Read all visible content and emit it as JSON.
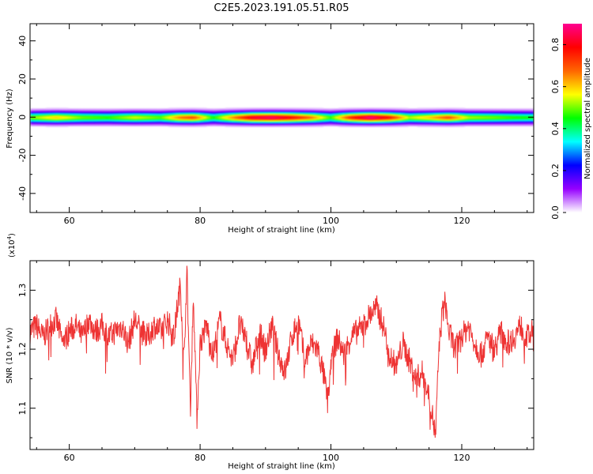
{
  "chart_data": [
    {
      "type": "heatmap",
      "title": "C2E5.2023.191.05.51.R05",
      "xlabel": "Height of straight line (km)",
      "ylabel": "Frequency (Hz)",
      "xlim": [
        54,
        131
      ],
      "ylim": [
        -50,
        49
      ],
      "x_ticks": [
        "60",
        "80",
        "100",
        "120"
      ],
      "y_ticks": [
        "-40",
        "-20",
        "0",
        "20",
        "40"
      ],
      "colorbar": {
        "label": "Normalized spectral amplitude",
        "range": [
          0,
          0.9
        ],
        "ticks": [
          "0.0",
          "0.2",
          "0.4",
          "0.6",
          "0.8"
        ],
        "colors": [
          "#ffffff",
          "#9600ff",
          "#0000ff",
          "#00ffff",
          "#00ff00",
          "#ffff00",
          "#ff6600",
          "#ff0000",
          "#ff0090"
        ]
      },
      "band": {
        "center_hz": 0,
        "half_width_hz": 5,
        "profile": [
          {
            "x": 54,
            "a": 0.45
          },
          {
            "x": 58,
            "a": 0.55
          },
          {
            "x": 62,
            "a": 0.45
          },
          {
            "x": 66,
            "a": 0.42
          },
          {
            "x": 70,
            "a": 0.5
          },
          {
            "x": 74,
            "a": 0.44
          },
          {
            "x": 77,
            "a": 0.62
          },
          {
            "x": 79,
            "a": 0.66
          },
          {
            "x": 82,
            "a": 0.4
          },
          {
            "x": 85,
            "a": 0.6
          },
          {
            "x": 88,
            "a": 0.78
          },
          {
            "x": 91,
            "a": 0.82
          },
          {
            "x": 94,
            "a": 0.74
          },
          {
            "x": 97,
            "a": 0.62
          },
          {
            "x": 100,
            "a": 0.42
          },
          {
            "x": 103,
            "a": 0.7
          },
          {
            "x": 106,
            "a": 0.84
          },
          {
            "x": 109,
            "a": 0.72
          },
          {
            "x": 112,
            "a": 0.48
          },
          {
            "x": 115,
            "a": 0.55
          },
          {
            "x": 118,
            "a": 0.66
          },
          {
            "x": 121,
            "a": 0.48
          },
          {
            "x": 125,
            "a": 0.45
          },
          {
            "x": 128,
            "a": 0.42
          },
          {
            "x": 131,
            "a": 0.4
          }
        ]
      }
    },
    {
      "type": "line",
      "xlabel": "Height of straight line (km)",
      "ylabel": "SNR (10 * v/v)",
      "y_multiplier_label": "(x10",
      "y_multiplier_exp": "4",
      "xlim": [
        54,
        131
      ],
      "ylim": [
        1.03,
        1.35
      ],
      "x_ticks": [
        "60",
        "80",
        "100",
        "120"
      ],
      "y_ticks": [
        "1.1",
        "1.2",
        "1.3"
      ],
      "series": [
        {
          "color": "#ee3333",
          "x": [
            54,
            55,
            56,
            57,
            58,
            59,
            60,
            61,
            62,
            63,
            64,
            65,
            66,
            67,
            68,
            69,
            70,
            71,
            72,
            73,
            74,
            75,
            76,
            76.5,
            77,
            77.5,
            78,
            78.5,
            79,
            79.5,
            80,
            81,
            82,
            83,
            84,
            85,
            86,
            87,
            88,
            89,
            90,
            91,
            92,
            93,
            94,
            95,
            96,
            97,
            98,
            99,
            99.5,
            100,
            101,
            102,
            103,
            104,
            105,
            106,
            107,
            108,
            109,
            110,
            111,
            112,
            113,
            114,
            115,
            115.5,
            116,
            116.5,
            117,
            117.5,
            118,
            119,
            120,
            121,
            122,
            123,
            124,
            125,
            126,
            127,
            128,
            129,
            130,
            131
          ],
          "values": [
            1.23,
            1.24,
            1.22,
            1.24,
            1.25,
            1.21,
            1.23,
            1.24,
            1.22,
            1.25,
            1.23,
            1.24,
            1.22,
            1.23,
            1.24,
            1.21,
            1.25,
            1.23,
            1.22,
            1.24,
            1.23,
            1.25,
            1.22,
            1.27,
            1.31,
            1.18,
            1.33,
            1.1,
            1.3,
            1.08,
            1.21,
            1.24,
            1.19,
            1.25,
            1.21,
            1.18,
            1.24,
            1.22,
            1.17,
            1.23,
            1.2,
            1.24,
            1.19,
            1.16,
            1.22,
            1.25,
            1.18,
            1.21,
            1.2,
            1.15,
            1.11,
            1.18,
            1.22,
            1.19,
            1.22,
            1.23,
            1.24,
            1.26,
            1.27,
            1.24,
            1.19,
            1.17,
            1.21,
            1.18,
            1.15,
            1.16,
            1.12,
            1.09,
            1.05,
            1.2,
            1.26,
            1.28,
            1.23,
            1.2,
            1.22,
            1.24,
            1.21,
            1.19,
            1.22,
            1.2,
            1.23,
            1.21,
            1.22,
            1.24,
            1.22,
            1.23
          ]
        }
      ]
    }
  ]
}
